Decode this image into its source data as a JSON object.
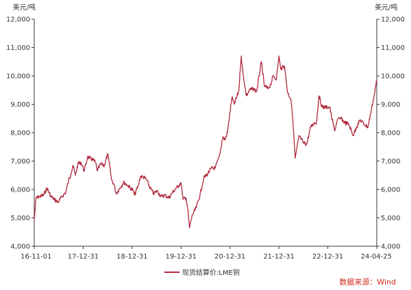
{
  "chart_data": {
    "type": "line",
    "y_unit_left": "美元/吨",
    "y_unit_right": "美元/吨",
    "ylim": [
      4000,
      12000
    ],
    "y_ticks": [
      4000,
      5000,
      6000,
      7000,
      8000,
      9000,
      10000,
      11000,
      12000
    ],
    "y_tick_labels": [
      "4,000",
      "5,000",
      "6,000",
      "7,000",
      "8,000",
      "9,000",
      "10,000",
      "11,000",
      "12,000"
    ],
    "x_range": [
      "2016-11-01",
      "2024-04-25"
    ],
    "x_tick_labels": [
      "16-11-01",
      "17-12-31",
      "18-12-31",
      "19-12-31",
      "20-12-31",
      "21-12-31",
      "22-12-31",
      "24-04-25"
    ],
    "grid": false,
    "legend_position": "bottom",
    "line_color": "#b0283c",
    "series": [
      {
        "name": "现货结算价:LME铜",
        "points": [
          [
            "2016-11-01",
            4900
          ],
          [
            "2016-11-15",
            5700
          ],
          [
            "2016-12-15",
            5750
          ],
          [
            "2017-01-15",
            5800
          ],
          [
            "2017-02-10",
            6050
          ],
          [
            "2017-03-15",
            5750
          ],
          [
            "2017-04-10",
            5650
          ],
          [
            "2017-05-10",
            5550
          ],
          [
            "2017-06-10",
            5750
          ],
          [
            "2017-07-10",
            5900
          ],
          [
            "2017-08-01",
            6300
          ],
          [
            "2017-08-20",
            6550
          ],
          [
            "2017-09-05",
            6850
          ],
          [
            "2017-09-25",
            6500
          ],
          [
            "2017-10-15",
            6900
          ],
          [
            "2017-11-10",
            6950
          ],
          [
            "2017-12-05",
            6650
          ],
          [
            "2017-12-31",
            7150
          ],
          [
            "2018-01-15",
            7100
          ],
          [
            "2018-02-10",
            7050
          ],
          [
            "2018-03-05",
            6950
          ],
          [
            "2018-03-20",
            6650
          ],
          [
            "2018-04-15",
            6900
          ],
          [
            "2018-05-15",
            6850
          ],
          [
            "2018-06-10",
            7250
          ],
          [
            "2018-06-25",
            6850
          ],
          [
            "2018-07-10",
            6350
          ],
          [
            "2018-08-01",
            6150
          ],
          [
            "2018-08-16",
            5850
          ],
          [
            "2018-09-15",
            6050
          ],
          [
            "2018-10-15",
            6250
          ],
          [
            "2018-11-15",
            6150
          ],
          [
            "2018-12-31",
            5950
          ],
          [
            "2019-01-10",
            5800
          ],
          [
            "2019-02-10",
            6150
          ],
          [
            "2019-02-25",
            6450
          ],
          [
            "2019-03-20",
            6450
          ],
          [
            "2019-04-15",
            6350
          ],
          [
            "2019-05-15",
            6050
          ],
          [
            "2019-06-10",
            5850
          ],
          [
            "2019-07-10",
            5950
          ],
          [
            "2019-08-10",
            5750
          ],
          [
            "2019-09-10",
            5800
          ],
          [
            "2019-10-10",
            5700
          ],
          [
            "2019-11-10",
            5900
          ],
          [
            "2019-12-10",
            6050
          ],
          [
            "2019-12-31",
            6150
          ],
          [
            "2020-01-15",
            6250
          ],
          [
            "2020-02-01",
            5650
          ],
          [
            "2020-02-25",
            5700
          ],
          [
            "2020-03-10",
            5300
          ],
          [
            "2020-03-23",
            4650
          ],
          [
            "2020-04-15",
            5100
          ],
          [
            "2020-05-15",
            5350
          ],
          [
            "2020-06-15",
            5800
          ],
          [
            "2020-07-15",
            6400
          ],
          [
            "2020-08-15",
            6550
          ],
          [
            "2020-09-15",
            6750
          ],
          [
            "2020-10-15",
            6750
          ],
          [
            "2020-11-15",
            7150
          ],
          [
            "2020-12-15",
            7850
          ],
          [
            "2020-12-31",
            7750
          ],
          [
            "2021-01-20",
            8000
          ],
          [
            "2021-02-25",
            9250
          ],
          [
            "2021-03-15",
            9000
          ],
          [
            "2021-04-20",
            9450
          ],
          [
            "2021-05-10",
            10700
          ],
          [
            "2021-05-25",
            10050
          ],
          [
            "2021-06-20",
            9300
          ],
          [
            "2021-07-15",
            9500
          ],
          [
            "2021-08-15",
            9550
          ],
          [
            "2021-09-10",
            9450
          ],
          [
            "2021-10-18",
            10500
          ],
          [
            "2021-11-10",
            9650
          ],
          [
            "2021-12-10",
            9550
          ],
          [
            "2021-12-31",
            9700
          ],
          [
            "2022-01-20",
            10000
          ],
          [
            "2022-02-15",
            9900
          ],
          [
            "2022-03-07",
            10700
          ],
          [
            "2022-03-20",
            10250
          ],
          [
            "2022-04-20",
            10350
          ],
          [
            "2022-05-15",
            9400
          ],
          [
            "2022-06-10",
            9200
          ],
          [
            "2022-06-25",
            8500
          ],
          [
            "2022-07-15",
            7100
          ],
          [
            "2022-08-15",
            7900
          ],
          [
            "2022-09-15",
            7650
          ],
          [
            "2022-10-15",
            7600
          ],
          [
            "2022-11-15",
            8200
          ],
          [
            "2022-12-15",
            8350
          ],
          [
            "2022-12-31",
            8350
          ],
          [
            "2023-01-20",
            9300
          ],
          [
            "2023-02-15",
            8900
          ],
          [
            "2023-03-10",
            8900
          ],
          [
            "2023-04-15",
            8900
          ],
          [
            "2023-05-25",
            8050
          ],
          [
            "2023-06-15",
            8450
          ],
          [
            "2023-07-15",
            8500
          ],
          [
            "2023-08-15",
            8350
          ],
          [
            "2023-09-15",
            8300
          ],
          [
            "2023-10-20",
            7900
          ],
          [
            "2023-11-15",
            8200
          ],
          [
            "2023-12-15",
            8450
          ],
          [
            "2024-01-15",
            8300
          ],
          [
            "2024-02-15",
            8200
          ],
          [
            "2024-03-15",
            8850
          ],
          [
            "2024-04-10",
            9450
          ],
          [
            "2024-04-25",
            9850
          ]
        ]
      }
    ]
  },
  "source_text": "数据来源：Wind"
}
